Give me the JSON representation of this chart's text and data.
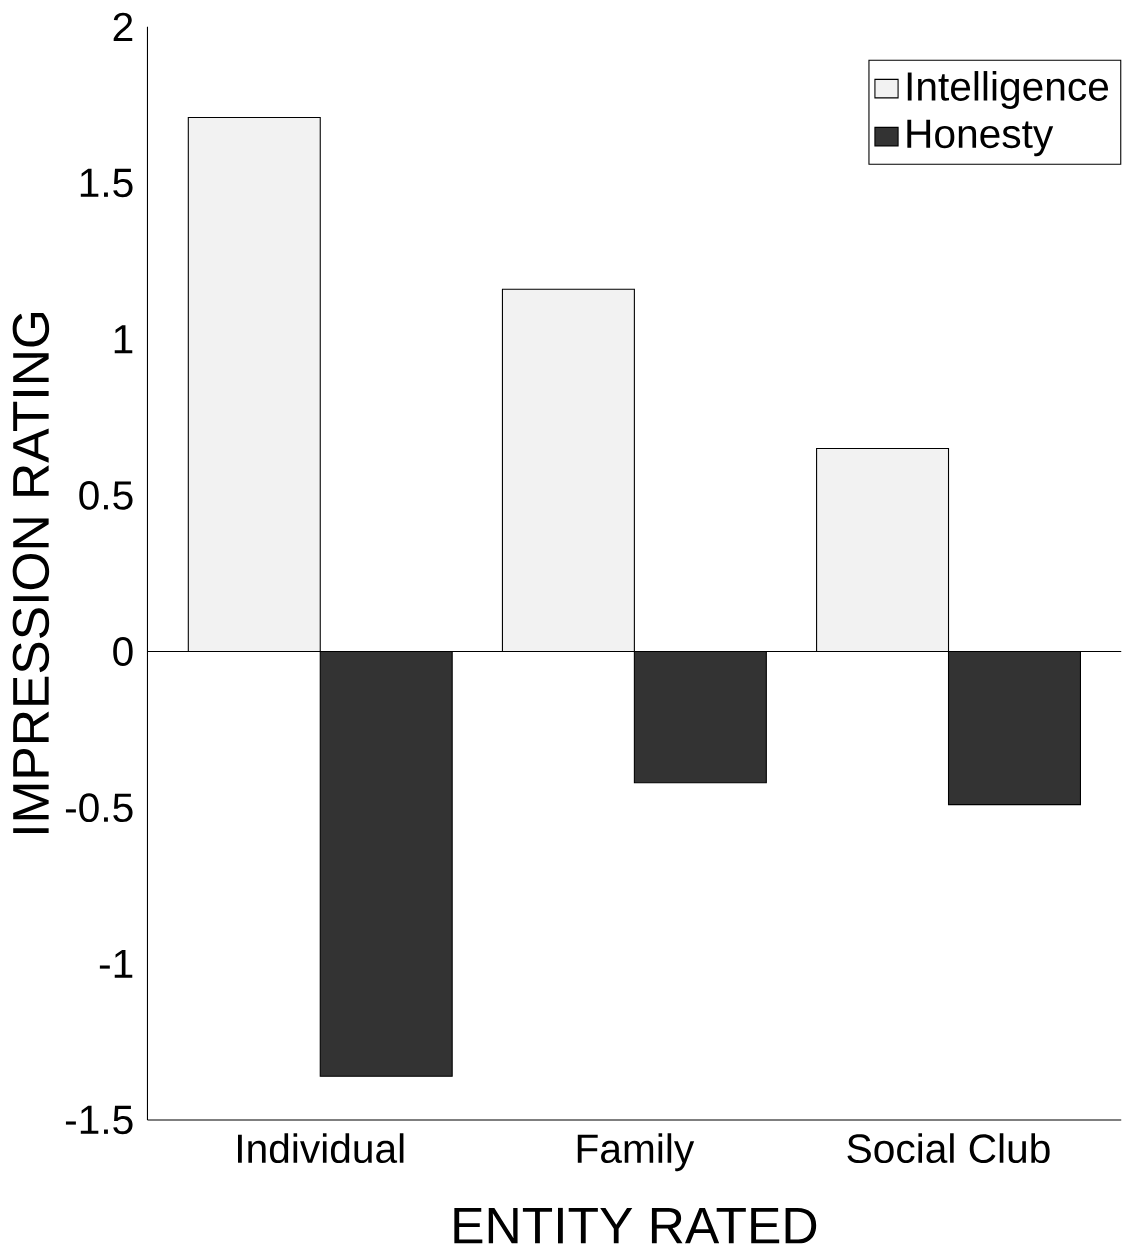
{
  "chart_data": {
    "type": "bar",
    "xlabel": "ENTITY RATED",
    "ylabel": "IMPRESSION RATING",
    "categories": [
      "Individual",
      "Family",
      "Social Club"
    ],
    "series": [
      {
        "name": "Intelligence",
        "color": "#f2f2f2",
        "values": [
          1.71,
          1.16,
          0.65
        ]
      },
      {
        "name": "Honesty",
        "color": "#333333",
        "values": [
          -1.36,
          -0.42,
          -0.49
        ]
      }
    ],
    "ylim": [
      -1.5,
      2
    ],
    "yticks": [
      -1.5,
      -1,
      -0.5,
      0,
      0.5,
      1,
      1.5,
      2
    ],
    "ref_lines": [
      {
        "axis": "y",
        "value": 0
      }
    ],
    "legend": "top right",
    "grid": false
  }
}
